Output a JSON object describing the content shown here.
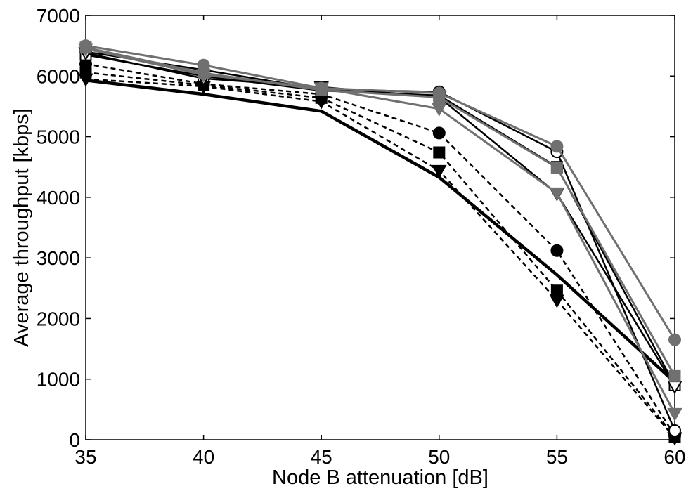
{
  "chart_data": {
    "type": "line",
    "title": "",
    "xlabel": "Node B attenuation [dB]",
    "ylabel": "Average throughput [kbps]",
    "xlim": [
      35,
      60
    ],
    "ylim": [
      0,
      7000
    ],
    "x": [
      35,
      40,
      45,
      50,
      55,
      60
    ],
    "xticks": [
      "35",
      "40",
      "45",
      "50",
      "55",
      "60"
    ],
    "yticks": [
      "0",
      "1000",
      "2000",
      "3000",
      "4000",
      "5000",
      "6000",
      "7000"
    ],
    "grid": false,
    "legend": "none",
    "series": [
      {
        "values": [
          5930,
          5700,
          5420,
          4330,
          2720,
          950
        ],
        "color": "#000000",
        "style": "solid",
        "width": 4.5,
        "marker": "none"
      },
      {
        "values": [
          6200,
          5870,
          5700,
          5060,
          3120,
          70
        ],
        "color": "#000000",
        "style": "dashed",
        "width": 2.5,
        "marker": "filled-circle"
      },
      {
        "values": [
          6060,
          5850,
          5640,
          4740,
          2460,
          50
        ],
        "color": "#000000",
        "style": "dashed",
        "width": 2.5,
        "marker": "filled-square"
      },
      {
        "values": [
          5950,
          5830,
          5580,
          4440,
          2300,
          30
        ],
        "color": "#000000",
        "style": "dashed",
        "width": 2.5,
        "marker": "filled-triangle-down"
      },
      {
        "values": [
          6400,
          6100,
          5780,
          5740,
          4750,
          150
        ],
        "color": "#000000",
        "style": "solid",
        "width": 2.5,
        "marker": "open-circle"
      },
      {
        "values": [
          6350,
          6000,
          5760,
          5680,
          4500,
          900
        ],
        "color": "#000000",
        "style": "solid",
        "width": 2.5,
        "marker": "open-square"
      },
      {
        "values": [
          6380,
          5960,
          5820,
          5650,
          4060,
          880
        ],
        "color": "#000000",
        "style": "solid",
        "width": 2.5,
        "marker": "open-triangle-down"
      },
      {
        "values": [
          6500,
          6180,
          5800,
          5720,
          4840,
          1650
        ],
        "color": "#707070",
        "style": "solid",
        "width": 3,
        "marker": "filled-circle"
      },
      {
        "values": [
          6470,
          6050,
          5770,
          5650,
          4490,
          1050
        ],
        "color": "#707070",
        "style": "solid",
        "width": 3,
        "marker": "filled-square"
      },
      {
        "values": [
          6450,
          6020,
          5800,
          5460,
          4070,
          430
        ],
        "color": "#707070",
        "style": "solid",
        "width": 3,
        "marker": "filled-triangle-down"
      }
    ]
  }
}
